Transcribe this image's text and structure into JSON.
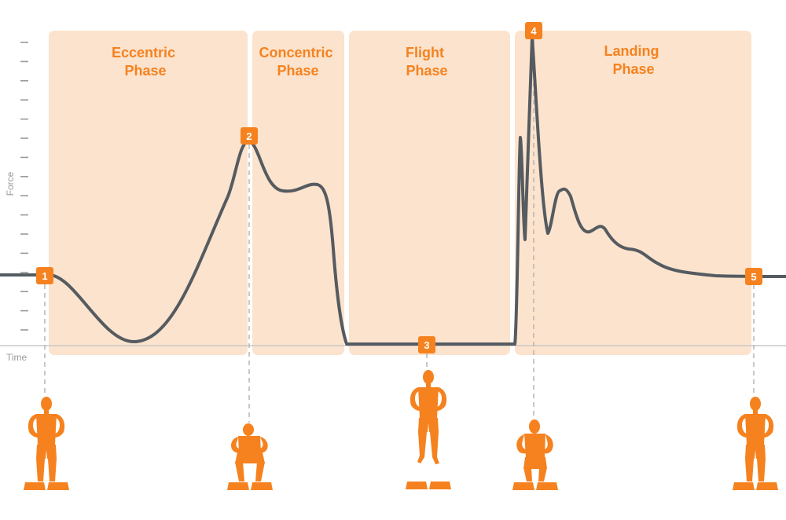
{
  "axis": {
    "y_label": "Force",
    "x_label": "Time"
  },
  "phases": [
    {
      "id": "eccentric",
      "line1": "Eccentric",
      "line2": "Phase"
    },
    {
      "id": "concentric",
      "line1": "Concentric",
      "line2": "Phase"
    },
    {
      "id": "flight",
      "line1": "Flight",
      "line2": "Phase"
    },
    {
      "id": "landing",
      "line1": "Landing",
      "line2": "Phase"
    }
  ],
  "markers": [
    {
      "id": 1,
      "label": "1"
    },
    {
      "id": 2,
      "label": "2"
    },
    {
      "id": 3,
      "label": "3"
    },
    {
      "id": 4,
      "label": "4"
    },
    {
      "id": 5,
      "label": "5"
    }
  ],
  "colors": {
    "phase_fill": "#fce3cd",
    "accent": "#f5821f",
    "curve": "#555b60",
    "axis": "#c8c8c8",
    "tick": "#9a9a9a",
    "label": "#9a9a9a",
    "dash": "#b5b5b5",
    "marker_text": "#ffffff"
  },
  "figures": [
    {
      "id": "figure-standing-start",
      "pose": "standing"
    },
    {
      "id": "figure-squat",
      "pose": "squat"
    },
    {
      "id": "figure-flight",
      "pose": "flight"
    },
    {
      "id": "figure-landing",
      "pose": "landing"
    },
    {
      "id": "figure-standing-end",
      "pose": "standing"
    }
  ]
}
